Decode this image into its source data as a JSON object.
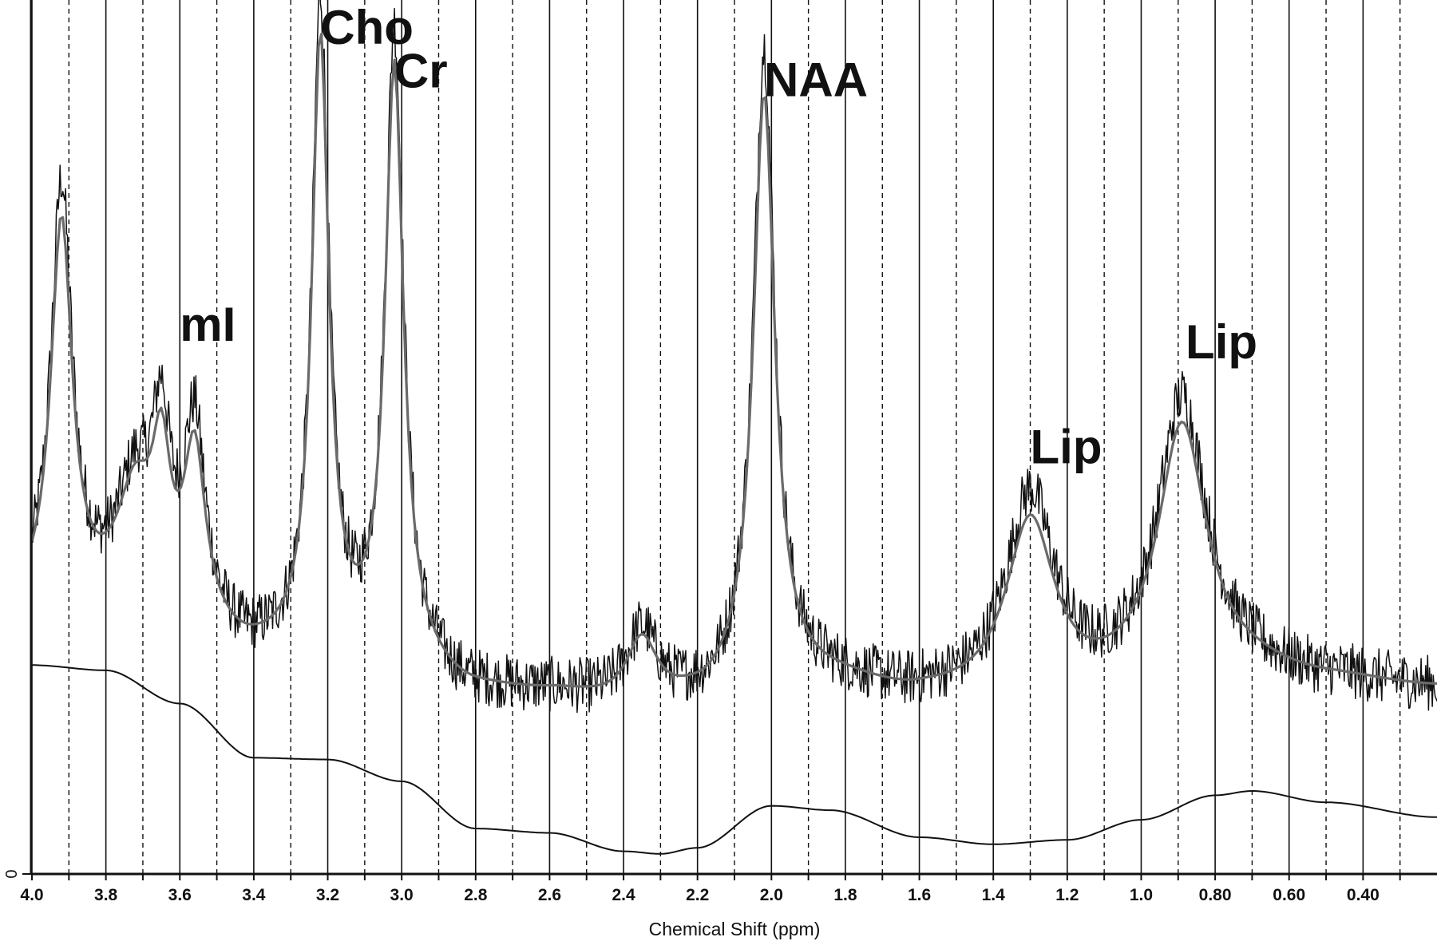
{
  "chart_data": {
    "type": "line",
    "xlabel": "Chemical Shift (ppm)",
    "ylabel": "",
    "x_reversed": true,
    "xlim": [
      4.0,
      0.2
    ],
    "ylim": [
      0,
      100
    ],
    "y_tick_labels": [
      "0"
    ],
    "x_tick_labels": [
      "4.0",
      "3.8",
      "3.6",
      "3.4",
      "3.2",
      "3.0",
      "2.8",
      "2.6",
      "2.4",
      "2.2",
      "2.0",
      "1.8",
      "1.6",
      "1.4",
      "1.2",
      "1.0",
      "0.80",
      "0.60",
      "0.40"
    ],
    "gridlines": {
      "solid_ppm": [
        4.0,
        3.8,
        3.6,
        3.4,
        3.2,
        3.0,
        2.8,
        2.6,
        2.4,
        2.2,
        2.0,
        1.8,
        1.6,
        1.4,
        1.2,
        1.0,
        0.8,
        0.6,
        0.4
      ],
      "dashed_ppm": [
        3.9,
        3.7,
        3.5,
        3.3,
        3.1,
        2.9,
        2.7,
        2.5,
        2.3,
        2.1,
        1.9,
        1.7,
        1.5,
        1.3,
        1.1,
        0.9,
        0.7,
        0.5,
        0.3
      ]
    },
    "annotations": [
      {
        "text": "Cho",
        "ppm": 3.22,
        "y": 95
      },
      {
        "text": "Cr",
        "ppm": 3.02,
        "y": 90
      },
      {
        "text": "NAA",
        "ppm": 2.02,
        "y": 89
      },
      {
        "text": "mI",
        "ppm": 3.6,
        "y": 61
      },
      {
        "text": "Lip",
        "ppm": 1.3,
        "y": 47
      },
      {
        "text": "Lip",
        "ppm": 0.88,
        "y": 59
      }
    ],
    "series": [
      {
        "role": "measured",
        "color": "#111111",
        "baseline": 23,
        "noise": 3.2,
        "peaks": [
          {
            "ppm": 3.92,
            "height": 48,
            "width": 0.035
          },
          {
            "ppm": 3.72,
            "height": 14,
            "width": 0.06
          },
          {
            "ppm": 3.65,
            "height": 19,
            "width": 0.03
          },
          {
            "ppm": 3.56,
            "height": 22,
            "width": 0.035
          },
          {
            "ppm": 3.22,
            "height": 74,
            "width": 0.028
          },
          {
            "ppm": 3.02,
            "height": 72,
            "width": 0.03
          },
          {
            "ppm": 2.35,
            "height": 8,
            "width": 0.05
          },
          {
            "ppm": 2.02,
            "height": 72,
            "width": 0.035
          },
          {
            "ppm": 1.3,
            "height": 23,
            "width": 0.08
          },
          {
            "ppm": 0.89,
            "height": 32,
            "width": 0.08
          }
        ]
      },
      {
        "role": "fit",
        "color": "#6a6a6a",
        "baseline": 23,
        "peaks": [
          {
            "ppm": 3.92,
            "height": 44,
            "width": 0.035
          },
          {
            "ppm": 3.72,
            "height": 13,
            "width": 0.06
          },
          {
            "ppm": 3.65,
            "height": 16,
            "width": 0.03
          },
          {
            "ppm": 3.56,
            "height": 19,
            "width": 0.035
          },
          {
            "ppm": 3.22,
            "height": 70,
            "width": 0.028
          },
          {
            "ppm": 3.02,
            "height": 68,
            "width": 0.03
          },
          {
            "ppm": 2.35,
            "height": 7,
            "width": 0.05
          },
          {
            "ppm": 2.02,
            "height": 67,
            "width": 0.035
          },
          {
            "ppm": 1.3,
            "height": 20,
            "width": 0.08
          },
          {
            "ppm": 0.89,
            "height": 29,
            "width": 0.08
          }
        ]
      },
      {
        "role": "baseline",
        "color": "#111111",
        "points": [
          [
            4.0,
            23.9
          ],
          [
            3.8,
            23.3
          ],
          [
            3.6,
            19.5
          ],
          [
            3.4,
            13.3
          ],
          [
            3.2,
            13.1
          ],
          [
            3.0,
            10.6
          ],
          [
            2.8,
            5.2
          ],
          [
            2.6,
            4.7
          ],
          [
            2.4,
            2.6
          ],
          [
            2.3,
            2.3
          ],
          [
            2.2,
            3.0
          ],
          [
            2.0,
            7.8
          ],
          [
            1.84,
            7.3
          ],
          [
            1.6,
            4.2
          ],
          [
            1.4,
            3.4
          ],
          [
            1.2,
            3.9
          ],
          [
            1.0,
            6.2
          ],
          [
            0.8,
            9.0
          ],
          [
            0.7,
            9.5
          ],
          [
            0.5,
            8.2
          ],
          [
            0.2,
            6.5
          ]
        ]
      }
    ]
  }
}
